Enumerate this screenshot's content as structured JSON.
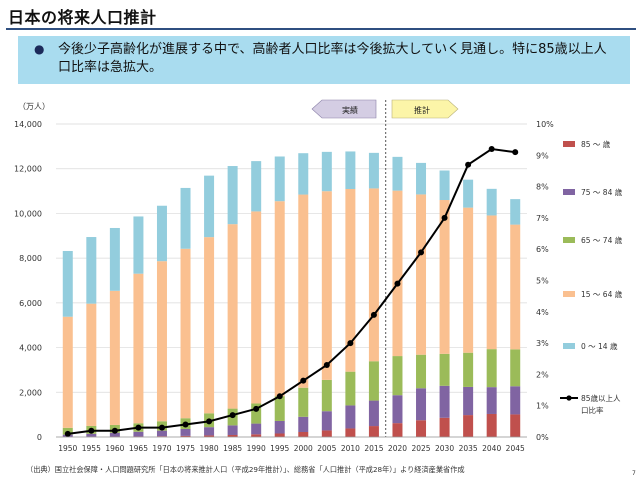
{
  "slide": {
    "title": "日本の将来人口推計",
    "summary": "今後少子高齢化が進展する中で、高齢者人口比率は今後拡大していく見通し。特に85歳以上人口比率は急拡大。",
    "source": "（出典）国立社会保障・人口問題研究所「日本の将来推計人口（平成29年推計）」、総務省「人口推計（平成28年）」より経済産業省作成",
    "page_number": "7"
  },
  "colors": {
    "age_85_plus": "#c0504d",
    "age_75_84": "#8064a2",
    "age_65_74": "#9bbb59",
    "age_15_64": "#fac090",
    "age_0_14": "#93cddd",
    "ratio_line": "#000000",
    "callout_bg": "#a9dcef",
    "title_rule": "#2f4f80"
  },
  "chart_data": {
    "type": "bar",
    "stacked": true,
    "ylabel_left": "（万人）",
    "categories": [
      "1950",
      "1955",
      "1960",
      "1965",
      "1970",
      "1975",
      "1980",
      "1985",
      "1990",
      "1995",
      "2000",
      "2005",
      "2010",
      "2015",
      "2020",
      "2025",
      "2030",
      "2035",
      "2040",
      "2045"
    ],
    "ylim_left": [
      0,
      14000
    ],
    "yticks_left": [
      "0",
      "2,000",
      "4,000",
      "6,000",
      "8,000",
      "10,000",
      "12,000",
      "14,000"
    ],
    "ylim_right": [
      0,
      10
    ],
    "yticks_right": [
      "0%",
      "1%",
      "2%",
      "3%",
      "4%",
      "5%",
      "6%",
      "7%",
      "8%",
      "9%",
      "10%"
    ],
    "annotations": {
      "actual": "実績",
      "projection": "推計"
    },
    "series": [
      {
        "name": "85 ～ 歳",
        "values": [
          10,
          14,
          19,
          25,
          34,
          50,
          70,
          90,
          120,
          157,
          224,
          294,
          382,
          489,
          620,
          750,
          860,
          980,
          1030,
          1010
        ]
      },
      {
        "name": "75 ～ 84 歳",
        "values": [
          95,
          130,
          170,
          210,
          250,
          310,
          370,
          430,
          480,
          560,
          680,
          860,
          1030,
          1140,
          1250,
          1430,
          1430,
          1260,
          1200,
          1260
        ]
      },
      {
        "name": "65 ～ 74 歳",
        "values": [
          305,
          350,
          350,
          380,
          420,
          480,
          620,
          750,
          900,
          1110,
          1300,
          1400,
          1510,
          1760,
          1750,
          1500,
          1430,
          1530,
          1700,
          1650
        ]
      },
      {
        "name": "15 ～ 64 歳",
        "values": [
          4970,
          5470,
          6000,
          6690,
          7160,
          7580,
          7880,
          8250,
          8590,
          8720,
          8640,
          8440,
          8170,
          7730,
          7400,
          7170,
          6880,
          6490,
          5980,
          5580
        ]
      },
      {
        "name": "0 ～ 14 歳",
        "values": [
          2940,
          2980,
          2810,
          2560,
          2480,
          2720,
          2750,
          2600,
          2250,
          2000,
          1850,
          1760,
          1680,
          1590,
          1510,
          1410,
          1320,
          1250,
          1190,
          1140
        ]
      }
    ],
    "line_series": {
      "name": "85歳以上人口比率",
      "axis": "right",
      "values": [
        0.1,
        0.2,
        0.2,
        0.3,
        0.3,
        0.4,
        0.5,
        0.7,
        0.9,
        1.3,
        1.8,
        2.3,
        3.0,
        3.9,
        4.9,
        5.9,
        7.0,
        8.7,
        9.2,
        9.1
      ]
    }
  }
}
